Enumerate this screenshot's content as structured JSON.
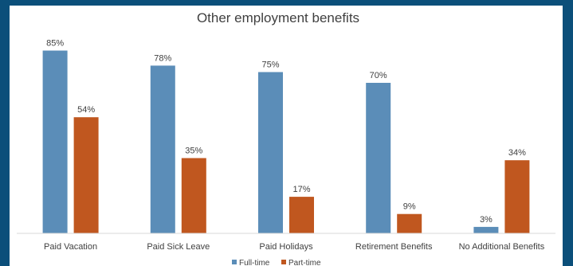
{
  "chart_data": {
    "type": "bar",
    "title": "Other employment benefits",
    "xlabel": "",
    "ylabel": "",
    "ylim": [
      0,
      90
    ],
    "grid": false,
    "legend": "bottom",
    "categories": [
      "Paid Vacation",
      "Paid Sick Leave",
      "Paid Holidays",
      "Retirement Benefits",
      "No Additional Benefits"
    ],
    "series": [
      {
        "name": "Full-time",
        "color": "#5b8db8",
        "values": [
          85,
          78,
          75,
          70,
          3
        ],
        "labels": [
          "85%",
          "78%",
          "75%",
          "70%",
          "3%"
        ]
      },
      {
        "name": "Part-time",
        "color": "#c0571f",
        "values": [
          54,
          35,
          17,
          9,
          34
        ],
        "labels": [
          "54%",
          "35%",
          "17%",
          "9%",
          "34%"
        ]
      }
    ]
  },
  "colors": {
    "background": "#0b4f7a",
    "panel": "#ffffff",
    "axis": "#d9d9d9",
    "text": "#404040"
  }
}
